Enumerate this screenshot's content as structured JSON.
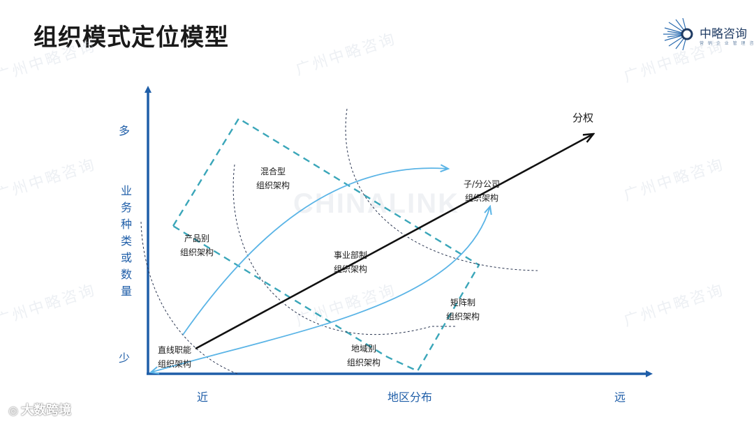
{
  "title": "组织模式定位模型",
  "logo": {
    "name": "中略咨询",
    "tagline": "营 销 企 业 管 理 咨 询"
  },
  "watermark": {
    "text": "广州中略咨询",
    "brand": "CHINALINK"
  },
  "axes": {
    "y_caption": "业务种类或数量",
    "y_high": "多",
    "y_low": "少",
    "x_caption": "地区分布",
    "x_near": "近",
    "x_far": "远"
  },
  "arrow_label": "分权",
  "nodes": {
    "functional": [
      "直线职能",
      "组织架构"
    ],
    "product": [
      "产品别",
      "组织架构"
    ],
    "hybrid": [
      "混合型",
      "组织架构"
    ],
    "division": [
      "事业部制",
      "组织架构"
    ],
    "subsidiary": [
      "子/分公司",
      "组织架构"
    ],
    "matrix": [
      "矩阵制",
      "组织架构"
    ],
    "regional": [
      "地域别",
      "组织架构"
    ]
  },
  "colors": {
    "axis": "#1f5ea8",
    "curve": "#5ab4e6",
    "dash_box": "#3aa6b9",
    "main_arrow": "#111111",
    "title": "#1a1a1a"
  },
  "footer_brand": "大数跨境"
}
